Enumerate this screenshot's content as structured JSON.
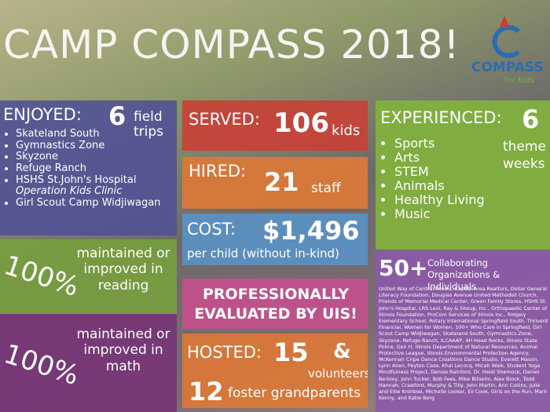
{
  "header": {
    "title": "CAMP COMPASS 2018!",
    "logo_name": "COMPASS",
    "logo_tagline": "for Kids"
  },
  "enjoyed": {
    "heading": "ENJOYED:",
    "number": "6",
    "unit": "field trips",
    "items": [
      "Skateland South",
      "Gymnastics Zone",
      "Skyzone",
      "Refuge Ranch",
      "HSHS St.John's Hospital",
      "Operation Kids Clinic",
      "Girl Scout Camp Widjiwagan"
    ]
  },
  "reading": {
    "percent": "100%",
    "text": "maintained or improved in reading"
  },
  "math": {
    "percent": "100%",
    "text": "maintained or improved in math"
  },
  "served": {
    "heading": "SERVED:",
    "number": "106",
    "unit": "kids"
  },
  "hired": {
    "heading": "HIRED:",
    "number": "21",
    "unit": "staff"
  },
  "cost": {
    "heading": "COST:",
    "number": "$1,496",
    "note": "per child (without in-kind)"
  },
  "evaluated": "PROFESSIONALLY EVALUATED BY UIS!",
  "hosted": {
    "heading": "HOSTED:",
    "number": "15",
    "conjunction": "&",
    "unit": "volunteers",
    "number_2": "12",
    "unit_2": "foster grandparents"
  },
  "experienced": {
    "heading": "EXPERIENCED:",
    "number": "6",
    "unit": "theme weeks",
    "items": [
      "Sports",
      "Arts",
      "STEM",
      "Animals",
      "Healthy Living",
      "Music"
    ]
  },
  "collaborators": {
    "number": "50+",
    "heading": "Collaborating Organizations & Individuals",
    "list": "United Way of Central Illinois, Capital Area Realtors, Dollar General Literacy Foundation, Douglas Avenue United Methodist Church, Friends of Memorial Medical Center, Green Family Stores, HSHS St. John's Hospital, LRS Levi, Ray & Shoup, Inc., Orthopaedic Center of Illinois Foundation, ProCom Services of Illinois Inc., Ridgely Elementary School, Rotary International Springfield South, Thrivent Financial, Women for Women, 100+ Who Care in Springfield, Girl Scout Camp Widjiwagan, Skateland South, Gymnastics Zone, Skyzone, Refuge Ranch, ILCAAAP, 4H Head Rocks, Illinois State Police, Gen H, Illinois Department of Natural Resources, Animal Protective League, Illinois Environmental Protection Agency, McKennah Cripe Dance Creations Dance Studio, Everett Mason, Lynn Allen, Peyton Case, Khai Lecocq, Micah Walk, Student Yoga Mindfulness Project, Denise Rainford, Dr. Heidi Shemock, Daniel Berkley, John Tucker, Bob Fees, Mike Bitselm, Alex Block, Todd Hannah, Crawford, Murphy & Tilly, John Martin, Ann Collins, Julie and Ellie Krehbiel, Michelle Looker, Eli Cook, Girls on the Run, Mark Kenny, and Katie Berg"
  }
}
